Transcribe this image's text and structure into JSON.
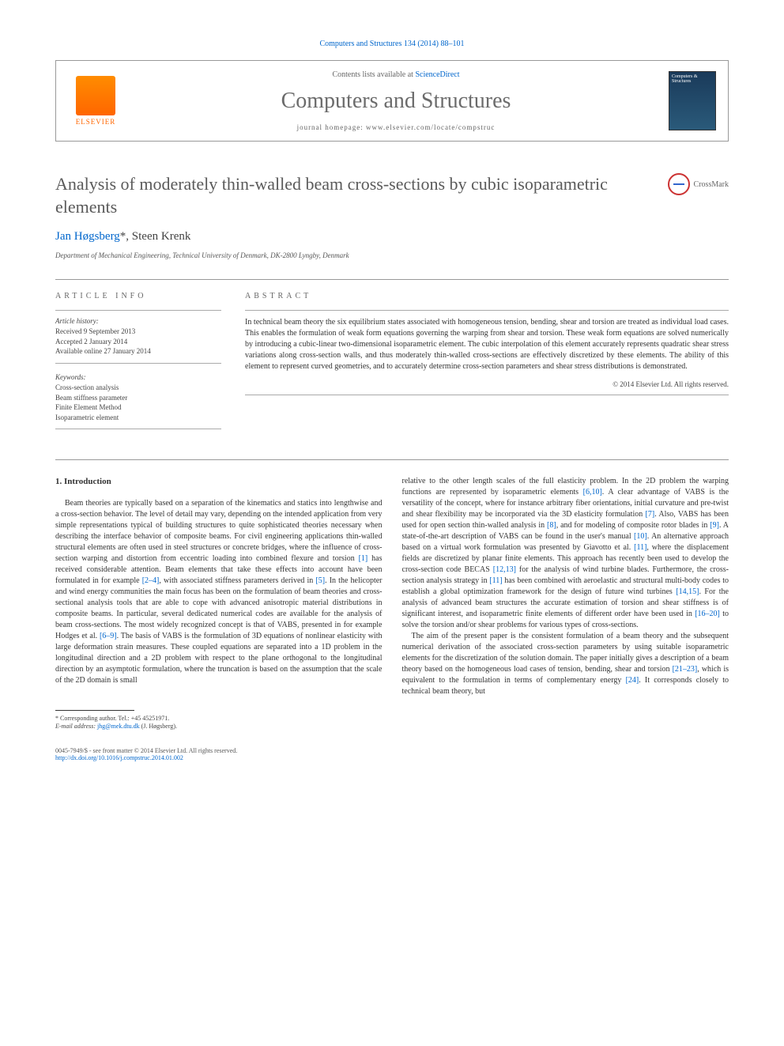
{
  "journal_ref": "Computers and Structures 134 (2014) 88–101",
  "header": {
    "publisher": "ELSEVIER",
    "contents_prefix": "Contents lists available at ",
    "contents_link": "ScienceDirect",
    "journal_name": "Computers and Structures",
    "homepage_prefix": "journal homepage: ",
    "homepage_url": "www.elsevier.com/locate/compstruc",
    "cover_text": "Computers & Structures"
  },
  "crossmark": "CrossMark",
  "title": "Analysis of moderately thin-walled beam cross-sections by cubic isoparametric elements",
  "authors": {
    "a1_name": "Jan Høgsberg",
    "a1_mark": "*",
    "sep": ", ",
    "a2_name": "Steen Krenk"
  },
  "affiliation": "Department of Mechanical Engineering, Technical University of Denmark, DK-2800 Lyngby, Denmark",
  "info": {
    "heading": "ARTICLE INFO",
    "history_label": "Article history:",
    "received": "Received 9 September 2013",
    "accepted": "Accepted 2 January 2014",
    "online": "Available online 27 January 2014",
    "keywords_label": "Keywords:",
    "keywords": [
      "Cross-section analysis",
      "Beam stiffness parameter",
      "Finite Element Method",
      "Isoparametric element"
    ]
  },
  "abstract": {
    "heading": "ABSTRACT",
    "text": "In technical beam theory the six equilibrium states associated with homogeneous tension, bending, shear and torsion are treated as individual load cases. This enables the formulation of weak form equations governing the warping from shear and torsion. These weak form equations are solved numerically by introducing a cubic-linear two-dimensional isoparametric element. The cubic interpolation of this element accurately represents quadratic shear stress variations along cross-section walls, and thus moderately thin-walled cross-sections are effectively discretized by these elements. The ability of this element to represent curved geometries, and to accurately determine cross-section parameters and shear stress distributions is demonstrated.",
    "copyright": "© 2014 Elsevier Ltd. All rights reserved."
  },
  "section1": {
    "heading": "1. Introduction",
    "p1a": "Beam theories are typically based on a separation of the kinematics and statics into lengthwise and a cross-section behavior. The level of detail may vary, depending on the intended application from very simple representations typical of building structures to quite sophisticated theories necessary when describing the interface behavior of composite beams. For civil engineering applications thin-walled structural elements are often used in steel structures or concrete bridges, where the influence of cross-section warping and distortion from eccentric loading into combined flexure and torsion ",
    "r1": "[1]",
    "p1b": " has received considerable attention. Beam elements that take these effects into account have been formulated in for example ",
    "r2": "[2–4]",
    "p1c": ", with associated stiffness parameters derived in ",
    "r5": "[5]",
    "p1d": ". In the helicopter and wind energy communities the main focus has been on the formulation of beam theories and cross-sectional analysis tools that are able to cope with advanced anisotropic material distributions in composite beams. In particular, several dedicated numerical codes are available for the analysis of beam cross-sections. The most widely recognized concept is that of VABS, presented in for example Hodges et al. ",
    "r6": "[6–9]",
    "p1e": ". The basis of VABS is the formulation of 3D equations of nonlinear elasticity with large deformation strain measures. These coupled equations are separated into a 1D problem in the longitudinal direction and a 2D problem with respect to the plane orthogonal to the longitudinal direction by an asymptotic formulation, where the truncation is based on the assumption that the scale of the 2D domain is small",
    "p2a": "relative to the other length scales of the full elasticity problem. In the 2D problem the warping functions are represented by isoparametric elements ",
    "r610": "[6,10]",
    "p2b": ". A clear advantage of VABS is the versatility of the concept, where for instance arbitrary fiber orientations, initial curvature and pre-twist and shear flexibility may be incorporated via the 3D elasticity formulation ",
    "r7": "[7]",
    "p2c": ". Also, VABS has been used for open section thin-walled analysis in ",
    "r8": "[8]",
    "p2d": ", and for modeling of composite rotor blades in ",
    "r9": "[9]",
    "p2e": ". A state-of-the-art description of VABS can be found in the user's manual ",
    "r10": "[10]",
    "p2f": ". An alternative approach based on a virtual work formulation was presented by Giavotto et al. ",
    "r11": "[11]",
    "p2g": ", where the displacement fields are discretized by planar finite elements. This approach has recently been used to develop the cross-section code BECAS ",
    "r1213": "[12,13]",
    "p2h": " for the analysis of wind turbine blades. Furthermore, the cross-section analysis strategy in ",
    "r11b": "[11]",
    "p2i": " has been combined with aeroelastic and structural multi-body codes to establish a global optimization framework for the design of future wind turbines ",
    "r1415": "[14,15]",
    "p2j": ". For the analysis of advanced beam structures the accurate estimation of torsion and shear stiffness is of significant interest, and isoparametric finite elements of different order have been used in ",
    "r1620": "[16–20]",
    "p2k": " to solve the torsion and/or shear problems for various types of cross-sections.",
    "p3a": "The aim of the present paper is the consistent formulation of a beam theory and the subsequent numerical derivation of the associated cross-section parameters by using suitable isoparametric elements for the discretization of the solution domain. The paper initially gives a description of a beam theory based on the homogeneous load cases of tension, bending, shear and torsion ",
    "r2123": "[21–23]",
    "p3b": ", which is equivalent to the formulation in terms of complementary energy ",
    "r24": "[24]",
    "p3c": ". It corresponds closely to technical beam theory, but"
  },
  "footnote": {
    "corr": "* Corresponding author. Tel.: +45 45251971.",
    "email_label": "E-mail address: ",
    "email": "jhg@mek.dtu.dk",
    "email_who": " (J. Høgsberg)."
  },
  "footer": {
    "issn": "0045-7949/$ - see front matter © 2014 Elsevier Ltd. All rights reserved.",
    "doi": "http://dx.doi.org/10.1016/j.compstruc.2014.01.002"
  }
}
